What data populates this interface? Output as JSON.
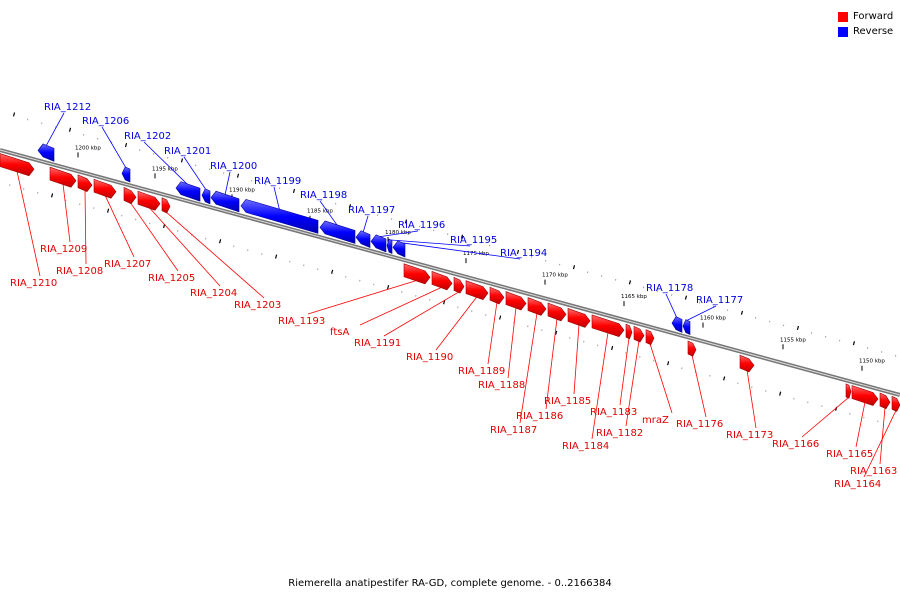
{
  "legend": {
    "forward_label": "Forward",
    "reverse_label": "Reverse",
    "forward_color": "#ff0000",
    "reverse_color": "#0000ff"
  },
  "footer": "Riemerella anatipestifer RA-GD, complete genome. - 0..2166384",
  "ticks": [
    "1200 kbp",
    "1195 kbp",
    "1190 kbp",
    "1185 kbp",
    "1180 kbp",
    "1175 kbp",
    "1170 kbp",
    "1165 kbp",
    "1160 kbp",
    "1155 kbp",
    "1150 kbp"
  ],
  "genes": [
    {
      "label": "RIA_1212",
      "strand": "reverse"
    },
    {
      "label": "RIA_1206",
      "strand": "reverse"
    },
    {
      "label": "RIA_1202",
      "strand": "reverse"
    },
    {
      "label": "RIA_1201",
      "strand": "reverse"
    },
    {
      "label": "RIA_1200",
      "strand": "reverse"
    },
    {
      "label": "RIA_1199",
      "strand": "reverse"
    },
    {
      "label": "RIA_1198",
      "strand": "reverse"
    },
    {
      "label": "RIA_1197",
      "strand": "reverse"
    },
    {
      "label": "RIA_1196",
      "strand": "reverse"
    },
    {
      "label": "RIA_1195",
      "strand": "reverse"
    },
    {
      "label": "RIA_1194",
      "strand": "reverse"
    },
    {
      "label": "RIA_1178",
      "strand": "reverse"
    },
    {
      "label": "RIA_1177",
      "strand": "reverse"
    },
    {
      "label": "RIA_1210",
      "strand": "forward"
    },
    {
      "label": "RIA_1209",
      "strand": "forward"
    },
    {
      "label": "RIA_1208",
      "strand": "forward"
    },
    {
      "label": "RIA_1207",
      "strand": "forward"
    },
    {
      "label": "RIA_1205",
      "strand": "forward"
    },
    {
      "label": "RIA_1204",
      "strand": "forward"
    },
    {
      "label": "RIA_1203",
      "strand": "forward"
    },
    {
      "label": "RIA_1193",
      "strand": "forward"
    },
    {
      "label": "ftsA",
      "strand": "forward"
    },
    {
      "label": "RIA_1191",
      "strand": "forward"
    },
    {
      "label": "RIA_1190",
      "strand": "forward"
    },
    {
      "label": "RIA_1189",
      "strand": "forward"
    },
    {
      "label": "RIA_1188",
      "strand": "forward"
    },
    {
      "label": "RIA_1187",
      "strand": "forward"
    },
    {
      "label": "RIA_1186",
      "strand": "forward"
    },
    {
      "label": "RIA_1185",
      "strand": "forward"
    },
    {
      "label": "RIA_1184",
      "strand": "forward"
    },
    {
      "label": "RIA_1183",
      "strand": "forward"
    },
    {
      "label": "RIA_1182",
      "strand": "forward"
    },
    {
      "label": "mraZ",
      "strand": "forward"
    },
    {
      "label": "RIA_1176",
      "strand": "forward"
    },
    {
      "label": "RIA_1173",
      "strand": "forward"
    },
    {
      "label": "RIA_1166",
      "strand": "forward"
    },
    {
      "label": "RIA_1165",
      "strand": "forward"
    },
    {
      "label": "RIA_1163",
      "strand": "forward"
    },
    {
      "label": "RIA_1164",
      "strand": "forward"
    }
  ]
}
